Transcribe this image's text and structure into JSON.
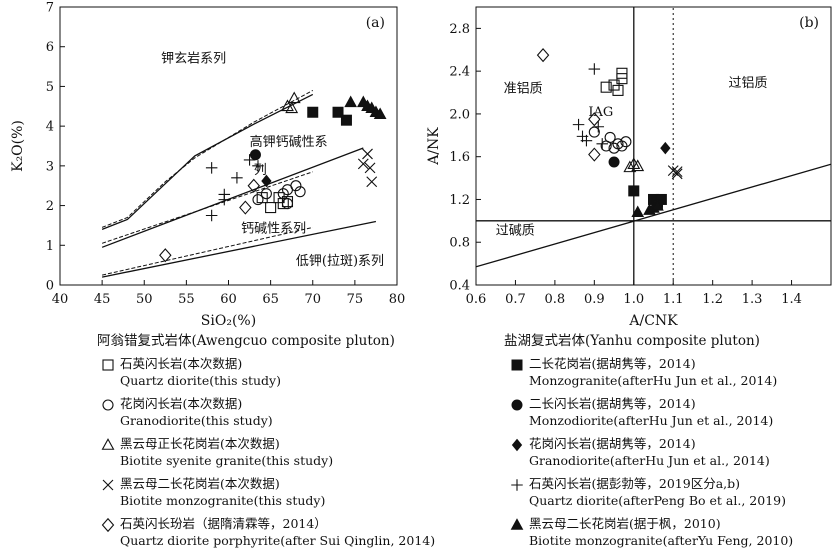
{
  "chart_data": [
    {
      "type": "scatter",
      "panel_label": "(a)",
      "xlabel": "SiO₂(%)",
      "ylabel": "K₂O(%)",
      "xlim": [
        40,
        80
      ],
      "ylim": [
        0,
        7
      ],
      "xticks": [
        "40",
        "45",
        "50",
        "55",
        "60",
        "65",
        "70",
        "75",
        "80"
      ],
      "yticks": [
        "0",
        "1",
        "2",
        "3",
        "4",
        "5",
        "6",
        "7"
      ],
      "field_labels": {
        "shoshonite": "钾玄岩系列",
        "high_k_a": "高钾钙碱性系",
        "high_k_b": "列",
        "calc_alkaline": "钙碱性系列",
        "low_k": "低钾(拉斑)系列"
      },
      "boundary_lines": [
        {
          "name": "shoshonite-upper-a",
          "style": "solid",
          "points": [
            [
              45,
              1.4
            ],
            [
              48,
              1.65
            ],
            [
              52.5,
              2.55
            ],
            [
              56,
              3.25
            ],
            [
              63,
              4.05
            ],
            [
              70,
              4.8
            ]
          ]
        },
        {
          "name": "shoshonite-upper-b",
          "style": "dashed",
          "points": [
            [
              45,
              1.45
            ],
            [
              48,
              1.7
            ],
            [
              52.5,
              2.6
            ],
            [
              56,
              3.2
            ],
            [
              63,
              4.1
            ],
            [
              70,
              4.9
            ]
          ]
        },
        {
          "name": "high-k-upper-a",
          "style": "solid",
          "points": [
            [
              45,
              0.95
            ],
            [
              76,
              3.45
            ]
          ]
        },
        {
          "name": "high-k-upper-b",
          "style": "dashed",
          "points": [
            [
              45,
              1.05
            ],
            [
              70,
              2.85
            ]
          ]
        },
        {
          "name": "calc-alk-upper-a",
          "style": "solid",
          "points": [
            [
              45,
              0.2
            ],
            [
              77.5,
              1.6
            ]
          ]
        },
        {
          "name": "calc-alk-upper-b",
          "style": "dashed",
          "points": [
            [
              45,
              0.25
            ],
            [
              70,
              1.45
            ]
          ]
        }
      ],
      "series": [
        {
          "name": "石英闪长岩(本次数据)",
          "marker": "open-square",
          "points": [
            [
              64,
              2.2
            ],
            [
              65,
              1.95
            ],
            [
              66.5,
              2.05
            ],
            [
              67,
              2.1
            ],
            [
              66,
              2.2
            ]
          ]
        },
        {
          "name": "花岗闪长岩(本次数据)",
          "marker": "open-circle",
          "points": [
            [
              63.5,
              2.15
            ],
            [
              64.5,
              2.3
            ],
            [
              66.5,
              2.3
            ],
            [
              67,
              2.05
            ],
            [
              67,
              2.4
            ],
            [
              68,
              2.5
            ],
            [
              68.5,
              2.35
            ]
          ]
        },
        {
          "name": "黑云母正长花岗岩(本次数据)",
          "marker": "open-triangle",
          "points": [
            [
              67,
              4.5
            ],
            [
              67.5,
              4.45
            ],
            [
              67.8,
              4.7
            ]
          ]
        },
        {
          "name": "黑云母二长花岗岩(本次数据)",
          "marker": "cross",
          "points": [
            [
              76,
              3.05
            ],
            [
              76.5,
              3.3
            ],
            [
              76.8,
              2.95
            ],
            [
              77,
              2.6
            ]
          ]
        },
        {
          "name": "石英闪长玢岩（据隋清霖等，2014）",
          "marker": "open-diamond",
          "points": [
            [
              52.5,
              0.75
            ],
            [
              62,
              1.95
            ],
            [
              63,
              2.5
            ]
          ]
        },
        {
          "name": "二长花岗岩(据胡隽等，2014)",
          "marker": "filled-square",
          "points": [
            [
              70,
              4.35
            ],
            [
              73,
              4.35
            ],
            [
              74,
              4.15
            ]
          ]
        },
        {
          "name": "二长闪长岩(据胡隽等，2014)",
          "marker": "filled-circle",
          "points": [
            [
              63.2,
              3.28
            ]
          ]
        },
        {
          "name": "花岗闪长岩(据胡隽等，2014)",
          "marker": "filled-diamond",
          "points": [
            [
              64.5,
              2.62
            ]
          ]
        },
        {
          "name": "石英闪长岩(据彭勃等，2019区分a,b)",
          "marker": "plus",
          "points": [
            [
              58,
              2.95
            ],
            [
              58,
              1.75
            ],
            [
              59.5,
              2.15
            ],
            [
              59.5,
              2.28
            ],
            [
              61,
              2.7
            ],
            [
              62.5,
              3.15
            ],
            [
              63.5,
              3.0
            ]
          ]
        },
        {
          "name": "黑云母二长花岗岩(据于枫，2010)",
          "marker": "filled-triangle",
          "points": [
            [
              74.5,
              4.6
            ],
            [
              76,
              4.6
            ],
            [
              76.5,
              4.5
            ],
            [
              77,
              4.45
            ],
            [
              77.5,
              4.35
            ],
            [
              78,
              4.3
            ]
          ]
        }
      ]
    },
    {
      "type": "scatter",
      "panel_label": "(b)",
      "xlabel": "A/CNK",
      "ylabel": "A/NK",
      "xlim": [
        0.6,
        1.5
      ],
      "ylim": [
        0.4,
        3.0
      ],
      "xticks": [
        "0.6",
        "0.7",
        "0.8",
        "0.9",
        "1.0",
        "1.1",
        "1.2",
        "1.3",
        "1.4"
      ],
      "yticks": [
        "0.4",
        "0.8",
        "1.2",
        "1.6",
        "2.0",
        "2.4",
        "2.8"
      ],
      "field_labels": {
        "metaluminous": "准铝质",
        "peraluminous": "过铝质",
        "peralkaline": "过碱质",
        "iag": "IAG"
      },
      "reference_lines": [
        {
          "name": "A/CNK = 1",
          "style": "solid",
          "points": [
            [
              1.0,
              0.4
            ],
            [
              1.0,
              3.0
            ]
          ]
        },
        {
          "name": "A/CNK = 1.1",
          "style": "dotted",
          "points": [
            [
              1.1,
              0.4
            ],
            [
              1.1,
              3.0
            ]
          ]
        },
        {
          "name": "A/NK = 1",
          "style": "solid",
          "points": [
            [
              0.6,
              1.0
            ],
            [
              1.5,
              1.0
            ]
          ]
        },
        {
          "name": "A/NK = A/CNK",
          "style": "solid",
          "points": [
            [
              0.6,
              0.57
            ],
            [
              1.5,
              1.53
            ]
          ]
        }
      ],
      "series": [
        {
          "name": "石英闪长岩(本次数据)",
          "marker": "open-square",
          "points": [
            [
              0.93,
              2.25
            ],
            [
              0.95,
              2.27
            ],
            [
              0.96,
              2.22
            ],
            [
              0.97,
              2.33
            ],
            [
              0.97,
              2.38
            ]
          ]
        },
        {
          "name": "花岗闪长岩(本次数据)",
          "marker": "open-circle",
          "points": [
            [
              0.9,
              1.83
            ],
            [
              0.93,
              1.7
            ],
            [
              0.94,
              1.78
            ],
            [
              0.95,
              1.68
            ],
            [
              0.96,
              1.72
            ],
            [
              0.97,
              1.7
            ],
            [
              0.98,
              1.74
            ]
          ]
        },
        {
          "name": "黑云母正长花岗岩(本次数据)",
          "marker": "open-triangle",
          "points": [
            [
              0.99,
              1.5
            ],
            [
              1.0,
              1.53
            ],
            [
              1.01,
              1.51
            ]
          ]
        },
        {
          "name": "黑云母二长花岗岩(本次数据)",
          "marker": "cross",
          "points": [
            [
              1.1,
              1.47
            ],
            [
              1.11,
              1.46
            ],
            [
              1.11,
              1.44
            ]
          ]
        },
        {
          "name": "石英闪长玢岩（据隋清霖等，2014）",
          "marker": "open-diamond",
          "points": [
            [
              0.77,
              2.55
            ],
            [
              0.9,
              1.95
            ],
            [
              0.9,
              1.62
            ]
          ]
        },
        {
          "name": "二长花岗岩(据胡隽等，2014)",
          "marker": "filled-square",
          "points": [
            [
              1.0,
              1.28
            ],
            [
              1.05,
              1.2
            ],
            [
              1.06,
              1.18
            ],
            [
              1.07,
              1.2
            ],
            [
              1.06,
              1.15
            ]
          ]
        },
        {
          "name": "二长闪长岩(据胡隽等，2014)",
          "marker": "filled-circle",
          "points": [
            [
              0.95,
              1.55
            ]
          ]
        },
        {
          "name": "花岗闪长岩(据胡隽等，2014)",
          "marker": "filled-diamond",
          "points": [
            [
              1.08,
              1.68
            ]
          ]
        },
        {
          "name": "石英闪长岩(据彭勃等，2019区分a,b)",
          "marker": "plus",
          "points": [
            [
              0.86,
              1.9
            ],
            [
              0.87,
              1.79
            ],
            [
              0.88,
              1.75
            ],
            [
              0.9,
              2.42
            ],
            [
              0.91,
              1.88
            ],
            [
              0.92,
              1.72
            ]
          ]
        },
        {
          "name": "黑云母二长花岗岩(据于枫，2010)",
          "marker": "filled-triangle",
          "points": [
            [
              1.01,
              1.08
            ],
            [
              1.04,
              1.1
            ],
            [
              1.05,
              1.12
            ],
            [
              1.06,
              1.14
            ]
          ]
        }
      ]
    }
  ],
  "legend_left": {
    "title": "阿翁错复式岩体(Awengcuo composite pluton)",
    "items": [
      {
        "marker": "open-square",
        "cn": "石英闪长岩(本次数据)",
        "en": "Quartz diorite(this study)"
      },
      {
        "marker": "open-circle",
        "cn": "花岗闪长岩(本次数据)",
        "en": "Granodiorite(this study)"
      },
      {
        "marker": "open-triangle",
        "cn": "黑云母正长花岗岩(本次数据)",
        "en": "Biotite syenite granite(this study)"
      },
      {
        "marker": "cross",
        "cn": "黑云母二长花岗岩(本次数据)",
        "en": "Biotite monzogranite(this study)"
      },
      {
        "marker": "open-diamond",
        "cn": "石英闪长玢岩（据隋清霖等，2014）",
        "en": "Quartz diorite porphyrite(after Sui Qinglin, 2014)"
      }
    ]
  },
  "legend_right": {
    "title": "盐湖复式岩体(Yanhu composite pluton)",
    "items": [
      {
        "marker": "filled-square",
        "cn": "二长花岗岩(据胡隽等，2014)",
        "en": "Monzogranite(afterHu Jun et al., 2014)"
      },
      {
        "marker": "filled-circle",
        "cn": "二长闪长岩(据胡隽等，2014)",
        "en": "Monzodiorite(afterHu Jun et al., 2014)"
      },
      {
        "marker": "filled-diamond",
        "cn": "花岗闪长岩(据胡隽等，2014)",
        "en": "Granodiorite(afterHu Jun et al., 2014)"
      },
      {
        "marker": "plus",
        "cn": "石英闪长岩(据彭勃等，2019区分a,b)",
        "en": "Quartz diorite(afterPeng Bo et al., 2019)"
      },
      {
        "marker": "filled-triangle",
        "cn": "黑云母二长花岗岩(据于枫，2010)",
        "en": "Biotite monzogranite(afterYu Feng, 2010)"
      }
    ]
  }
}
